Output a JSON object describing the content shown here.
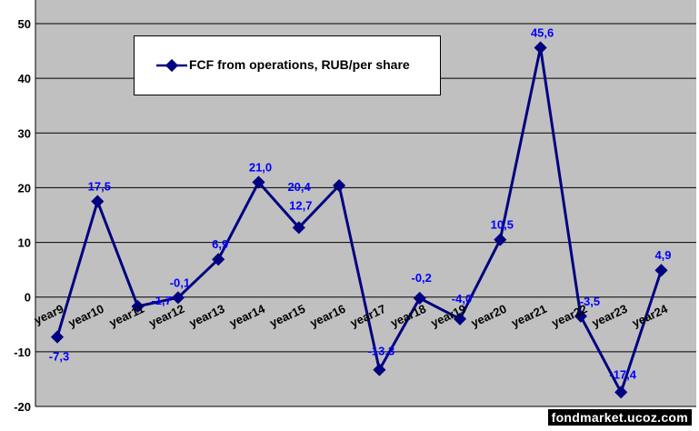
{
  "chart_data": {
    "type": "line",
    "categories": [
      "year9",
      "year10",
      "year11",
      "year12",
      "year13",
      "year14",
      "year15",
      "year16",
      "year17",
      "year18",
      "year19",
      "year20",
      "year21",
      "year22",
      "year23",
      "year24"
    ],
    "series": [
      {
        "name": "FCF from operations, RUB/per share",
        "values": [
          -7.3,
          17.5,
          -1.7,
          -0.1,
          6.9,
          21.0,
          12.7,
          20.4,
          -13.3,
          -0.2,
          -4.0,
          10.5,
          45.6,
          -3.5,
          -17.4,
          4.9
        ],
        "labels": [
          "-7,3",
          "17,5",
          "-1,7",
          "-0,1",
          "6,9",
          "21,0",
          "12,7",
          "20,4",
          "-13,3",
          "-0,2",
          "-4,0",
          "10,5",
          "45,6",
          "-3,5",
          "-17,4",
          "4,9"
        ]
      }
    ],
    "ylim": [
      -20,
      50
    ],
    "yticks": [
      -20,
      -10,
      0,
      10,
      20,
      30,
      40,
      50
    ],
    "grid": true,
    "legend_position": "top-left",
    "colors": {
      "plot_bg": "#c0c0c0",
      "line": "#000080",
      "labels": "#0000ff"
    }
  },
  "watermark": "fondmarket.ucoz.com"
}
